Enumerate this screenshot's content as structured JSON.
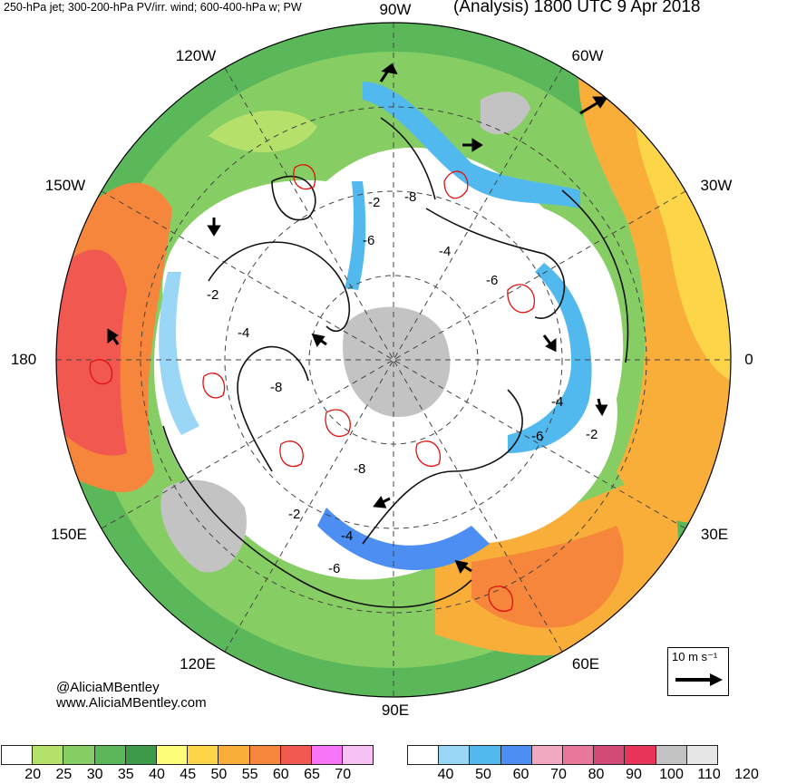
{
  "header": {
    "left_title": "250-hPa jet; 300-200-hPa PV/irr. wind; 600-400-hPa w; PW",
    "right_title": "(Analysis) 1800 UTC 9 Apr 2018"
  },
  "longitude_labels": [
    "90W",
    "120W",
    "60W",
    "150W",
    "30W",
    "180",
    "0",
    "150E",
    "30E",
    "120E",
    "60E",
    "90E"
  ],
  "contour_labels": [
    "-2",
    "-8",
    "-6",
    "-4",
    "-6",
    "-2",
    "-4",
    "-8",
    "-6",
    "-4",
    "-2",
    "-8",
    "-2",
    "-4",
    "-6"
  ],
  "credits": {
    "handle": "@AliciaMBentley",
    "website": "www.AliciaMBentley.com"
  },
  "wind_scale": {
    "label": "10 m s⁻¹"
  },
  "colorbars": {
    "pw": {
      "colors": [
        "#ffffff",
        "#b5e06a",
        "#86cd63",
        "#5ab85a",
        "#3c9a48",
        "#fdfd7a",
        "#fcd549",
        "#f9ae3a",
        "#f6863b",
        "#f05850",
        "#f875f8",
        "#f5c2f3"
      ],
      "labels": [
        "20",
        "25",
        "30",
        "35",
        "40",
        "45",
        "50",
        "55",
        "60",
        "65",
        "70"
      ]
    },
    "jet": {
      "colors": [
        "#ffffff",
        "#9ad6f5",
        "#52b9ee",
        "#4d8ef2",
        "#f2a8c0",
        "#e97799",
        "#d44a76",
        "#e9345a",
        "#c3c3c3",
        "#e6e6e6"
      ],
      "labels": [
        "40",
        "50",
        "60",
        "70",
        "80",
        "90",
        "100",
        "110",
        "120"
      ]
    }
  }
}
